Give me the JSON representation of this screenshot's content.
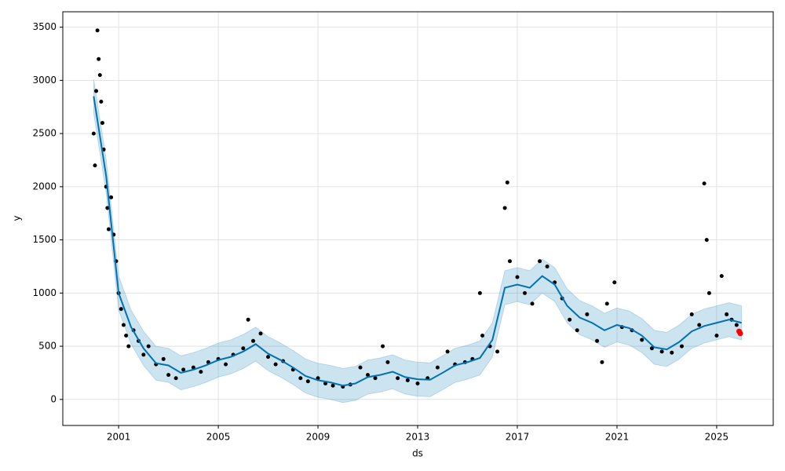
{
  "chart_data": {
    "type": "forecast",
    "xlabel": "ds",
    "ylabel": "y",
    "xlim": [
      1998.76,
      2027.27
    ],
    "ylim": [
      -245,
      3645
    ],
    "xticks": [
      2001,
      2005,
      2009,
      2013,
      2017,
      2021,
      2025
    ],
    "yticks": [
      0,
      500,
      1000,
      1500,
      2000,
      2500,
      3000,
      3500
    ],
    "grid": true,
    "x": [
      2000.0,
      2000.5,
      2001.0,
      2001.5,
      2002.0,
      2002.5,
      2003.0,
      2003.5,
      2004.0,
      2004.5,
      2005.0,
      2005.5,
      2006.0,
      2006.5,
      2007.0,
      2007.5,
      2008.0,
      2008.5,
      2009.0,
      2009.5,
      2010.0,
      2010.5,
      2011.0,
      2011.5,
      2012.0,
      2012.5,
      2013.0,
      2013.5,
      2014.0,
      2014.5,
      2015.0,
      2015.5,
      2016.0,
      2016.5,
      2017.0,
      2017.5,
      2018.0,
      2018.5,
      2019.0,
      2019.5,
      2020.0,
      2020.5,
      2021.0,
      2021.5,
      2022.0,
      2022.5,
      2023.0,
      2023.5,
      2024.0,
      2024.5,
      2025.0,
      2025.5,
      2026.0
    ],
    "series": [
      {
        "color": "#0072b2",
        "values": [
          2850,
          2100,
          1000,
          680,
          480,
          340,
          320,
          250,
          280,
          320,
          370,
          400,
          450,
          520,
          430,
          370,
          300,
          220,
          180,
          160,
          130,
          150,
          210,
          230,
          260,
          210,
          190,
          185,
          250,
          320,
          350,
          390,
          560,
          1050,
          1080,
          1050,
          1160,
          1080,
          880,
          770,
          720,
          650,
          700,
          670,
          600,
          490,
          470,
          540,
          640,
          690,
          720,
          750,
          720
        ]
      }
    ],
    "interval": {
      "color": "#0072b2",
      "lower": [
        2690,
        1940,
        840,
        520,
        320,
        180,
        160,
        90,
        120,
        160,
        210,
        240,
        290,
        360,
        270,
        210,
        140,
        60,
        20,
        0,
        -30,
        -10,
        50,
        70,
        100,
        50,
        30,
        25,
        90,
        160,
        190,
        230,
        400,
        890,
        920,
        890,
        1000,
        920,
        720,
        610,
        560,
        490,
        540,
        510,
        440,
        330,
        310,
        380,
        480,
        530,
        560,
        590,
        560
      ],
      "upper": [
        3010,
        2260,
        1160,
        840,
        640,
        500,
        480,
        410,
        440,
        480,
        530,
        560,
        610,
        680,
        590,
        530,
        460,
        380,
        340,
        320,
        290,
        310,
        370,
        390,
        420,
        370,
        350,
        345,
        410,
        480,
        510,
        550,
        720,
        1210,
        1240,
        1210,
        1320,
        1240,
        1040,
        930,
        880,
        810,
        860,
        830,
        760,
        650,
        630,
        700,
        800,
        850,
        880,
        910,
        880
      ]
    },
    "points": {
      "color": "#000000",
      "x": [
        2000.0,
        2000.05,
        2000.1,
        2000.15,
        2000.2,
        2000.25,
        2000.3,
        2000.35,
        2000.4,
        2000.5,
        2000.55,
        2000.6,
        2000.7,
        2000.8,
        2000.9,
        2001.0,
        2001.1,
        2001.2,
        2001.3,
        2001.4,
        2001.6,
        2001.8,
        2002.0,
        2002.2,
        2002.5,
        2002.8,
        2003.0,
        2003.3,
        2003.6,
        2004.0,
        2004.3,
        2004.6,
        2005.0,
        2005.3,
        2005.6,
        2006.0,
        2006.2,
        2006.4,
        2006.7,
        2007.0,
        2007.3,
        2007.6,
        2008.0,
        2008.3,
        2008.6,
        2009.0,
        2009.3,
        2009.6,
        2010.0,
        2010.3,
        2010.7,
        2011.0,
        2011.3,
        2011.6,
        2011.8,
        2012.2,
        2012.6,
        2013.0,
        2013.4,
        2013.8,
        2014.2,
        2014.5,
        2014.9,
        2015.2,
        2015.5,
        2015.6,
        2015.9,
        2016.2,
        2016.5,
        2016.6,
        2016.7,
        2017.0,
        2017.3,
        2017.6,
        2017.9,
        2018.2,
        2018.5,
        2018.8,
        2019.1,
        2019.4,
        2019.8,
        2020.2,
        2020.4,
        2020.6,
        2020.9,
        2021.2,
        2021.6,
        2022.0,
        2022.4,
        2022.8,
        2023.2,
        2023.6,
        2024.0,
        2024.3,
        2024.5,
        2024.6,
        2024.7,
        2025.0,
        2025.2,
        2025.4,
        2025.6,
        2025.8
      ],
      "values": [
        2500,
        2200,
        2900,
        3470,
        3200,
        3050,
        2800,
        2600,
        2350,
        2000,
        1800,
        1600,
        1900,
        1550,
        1300,
        1000,
        850,
        700,
        600,
        500,
        650,
        550,
        420,
        500,
        330,
        380,
        230,
        200,
        280,
        300,
        260,
        350,
        380,
        330,
        420,
        480,
        750,
        550,
        620,
        400,
        330,
        360,
        280,
        200,
        170,
        200,
        150,
        130,
        120,
        140,
        300,
        230,
        200,
        500,
        350,
        200,
        180,
        150,
        200,
        300,
        450,
        330,
        350,
        380,
        1000,
        600,
        500,
        450,
        1800,
        2040,
        1300,
        1150,
        1000,
        900,
        1300,
        1250,
        1100,
        950,
        750,
        650,
        800,
        550,
        350,
        900,
        1100,
        680,
        650,
        560,
        480,
        450,
        440,
        500,
        800,
        700,
        2030,
        1500,
        1000,
        600,
        1160,
        800,
        750,
        700
      ]
    },
    "highlight": {
      "color": "#ff0000",
      "x": [
        2025.9,
        2025.95
      ],
      "values": [
        640,
        620
      ]
    }
  }
}
